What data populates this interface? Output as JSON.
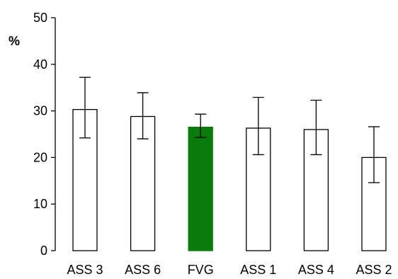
{
  "chart_data": {
    "type": "bar",
    "title": "",
    "xlabel": "",
    "ylabel": "%",
    "ylim": [
      0,
      50
    ],
    "yticks": [
      0,
      10,
      20,
      30,
      40,
      50
    ],
    "grid": false,
    "categories": [
      "ASS 3",
      "ASS 6",
      "FVG",
      "ASS 1",
      "ASS 4",
      "ASS 2"
    ],
    "values": [
      30.3,
      28.8,
      26.5,
      26.3,
      26.0,
      20.0
    ],
    "error_low": [
      24.2,
      24.0,
      24.3,
      20.6,
      20.6,
      14.6
    ],
    "error_high": [
      37.2,
      33.9,
      29.3,
      32.9,
      32.3,
      26.6
    ],
    "colors": {
      "default_fill": "#ffffff",
      "highlight_fill": "#0a7a0a",
      "highlight_category": "FVG",
      "stroke": "#000000"
    }
  }
}
